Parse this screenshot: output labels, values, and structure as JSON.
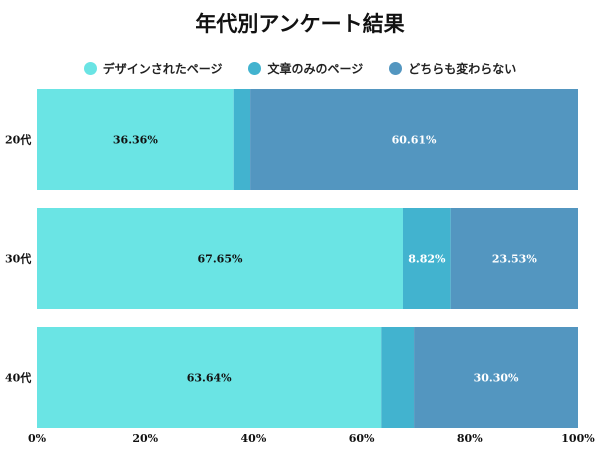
{
  "chart_data": {
    "type": "bar",
    "orientation": "horizontal",
    "stacked": true,
    "title": "年代別アンケート結果",
    "categories": [
      "20代",
      "30代",
      "40代"
    ],
    "series": [
      {
        "name": "デザインされたページ",
        "color": "#6ae4e4",
        "values": [
          36.36,
          67.65,
          63.64
        ],
        "labels": [
          "36.36%",
          "67.65%",
          "63.64%"
        ]
      },
      {
        "name": "文章のみのページ",
        "color": "#42b3cf",
        "values": [
          3.03,
          8.82,
          6.06
        ],
        "labels": [
          "",
          "8.82%",
          ""
        ]
      },
      {
        "name": "どちらも変わらない",
        "color": "#5396c0",
        "values": [
          60.61,
          23.53,
          30.3
        ],
        "labels": [
          "60.61%",
          "23.53%",
          "30.30%"
        ]
      }
    ],
    "xlim": [
      0,
      100
    ],
    "xticks": [
      "0%",
      "20%",
      "40%",
      "60%",
      "80%",
      "100%"
    ],
    "legend": "top",
    "grid": false
  }
}
